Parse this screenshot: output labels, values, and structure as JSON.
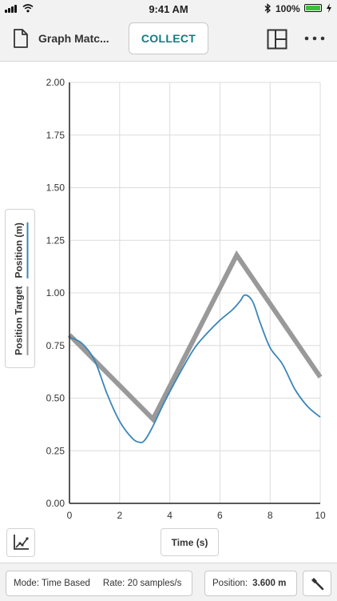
{
  "status_bar": {
    "time": "9:41 AM",
    "battery": "100%"
  },
  "toolbar": {
    "file_title": "Graph Matc...",
    "collect_label": "COLLECT"
  },
  "chart_data": {
    "type": "line",
    "xlabel": "Time (s)",
    "ylabel": "",
    "xlim": [
      0,
      10
    ],
    "ylim": [
      0,
      2
    ],
    "grid": true,
    "x_ticks": [
      "0",
      "2",
      "4",
      "6",
      "8",
      "10"
    ],
    "y_ticks": [
      "0.00",
      "0.25",
      "0.50",
      "0.75",
      "1.00",
      "1.25",
      "1.50",
      "1.75",
      "2.00"
    ],
    "legend": [
      "Position Target",
      "Position (m)"
    ],
    "series": [
      {
        "name": "Position Target",
        "color": "#999999",
        "x": [
          0,
          3.33,
          6.67,
          10
        ],
        "y": [
          0.8,
          0.4,
          1.18,
          0.6
        ]
      },
      {
        "name": "Position (m)",
        "color": "#3a86b8",
        "x": [
          0,
          0.5,
          1,
          1.5,
          2,
          2.5,
          2.8,
          3,
          3.3,
          3.7,
          4,
          4.5,
          5,
          5.5,
          6,
          6.5,
          6.8,
          7,
          7.3,
          7.6,
          8,
          8.5,
          9,
          9.5,
          10
        ],
        "y": [
          0.79,
          0.76,
          0.68,
          0.52,
          0.39,
          0.31,
          0.29,
          0.3,
          0.36,
          0.46,
          0.53,
          0.64,
          0.74,
          0.81,
          0.87,
          0.92,
          0.96,
          0.99,
          0.96,
          0.86,
          0.74,
          0.66,
          0.54,
          0.46,
          0.41
        ]
      }
    ]
  },
  "bottom_bar": {
    "mode": "Mode: Time Based",
    "rate": "Rate: 20 samples/s",
    "position_label": "Position:",
    "position_value": "3.600 m"
  },
  "icons": {
    "document": "document-icon",
    "layout": "layout-icon",
    "more": "more-icon",
    "chart_options": "chart-options-icon",
    "tools": "tools-icon"
  }
}
